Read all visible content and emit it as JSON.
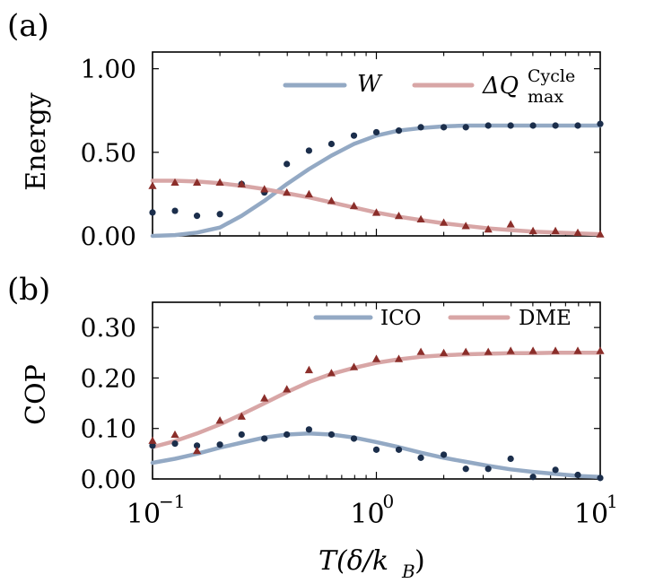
{
  "panels": [
    {
      "panel_label": "(a)",
      "ylabel": "Energy",
      "legend": [
        {
          "name": "W",
          "color": "#93a9c4",
          "style": "line"
        },
        {
          "name": "ΔQ",
          "sub": "max",
          "sup": "Cycle",
          "color": "#d8a6a6",
          "style": "line"
        }
      ]
    },
    {
      "panel_label": "(b)",
      "ylabel": "COP",
      "legend": [
        {
          "name": "ICO",
          "color": "#93a9c4",
          "style": "line"
        },
        {
          "name": "DME",
          "color": "#d8a6a6",
          "style": "line"
        }
      ]
    }
  ],
  "xlabel": {
    "main": "T(δ/k",
    "sub": "B",
    "close": ")"
  },
  "chart_data": [
    {
      "type": "line",
      "panel": "(a)",
      "ylabel": "Energy",
      "xscale": "log",
      "xlim": [
        0.1,
        10
      ],
      "ylim": [
        0,
        1.1
      ],
      "yticks": [
        "0.00",
        "0.50",
        "1.00"
      ],
      "ytick_values": [
        0,
        0.5,
        1.0
      ],
      "xtick_values": [
        0.1,
        1,
        10
      ],
      "series": [
        {
          "name": "W",
          "kind": "line",
          "color": "#93a9c4",
          "x": [
            0.1,
            0.126,
            0.158,
            0.2,
            0.25,
            0.316,
            0.398,
            0.5,
            0.63,
            0.794,
            1,
            1.26,
            1.58,
            2,
            2.51,
            3.16,
            3.98,
            5.01,
            6.31,
            7.94,
            10
          ],
          "y": [
            0.0,
            0.005,
            0.02,
            0.05,
            0.12,
            0.21,
            0.31,
            0.4,
            0.48,
            0.55,
            0.6,
            0.63,
            0.645,
            0.655,
            0.66,
            0.66,
            0.66,
            0.66,
            0.66,
            0.66,
            0.66
          ]
        },
        {
          "name": "ΔQ",
          "kind": "line",
          "color": "#d8a6a6",
          "x": [
            0.1,
            0.126,
            0.158,
            0.2,
            0.25,
            0.316,
            0.398,
            0.5,
            0.63,
            0.794,
            1,
            1.26,
            1.58,
            2,
            2.51,
            3.16,
            3.98,
            5.01,
            6.31,
            7.94,
            10
          ],
          "y": [
            0.33,
            0.33,
            0.325,
            0.315,
            0.3,
            0.28,
            0.255,
            0.23,
            0.2,
            0.17,
            0.14,
            0.115,
            0.095,
            0.075,
            0.06,
            0.045,
            0.035,
            0.025,
            0.02,
            0.015,
            0.01
          ]
        },
        {
          "name": "W-markers",
          "kind": "scatter",
          "marker": "circle",
          "color": "#1b2e4b",
          "x": [
            0.1,
            0.126,
            0.158,
            0.2,
            0.25,
            0.316,
            0.398,
            0.5,
            0.63,
            0.794,
            1,
            1.26,
            1.58,
            2,
            2.51,
            3.16,
            3.98,
            5.01,
            6.31,
            7.94,
            10
          ],
          "y": [
            0.14,
            0.15,
            0.12,
            0.13,
            0.31,
            0.26,
            0.43,
            0.51,
            0.55,
            0.6,
            0.62,
            0.63,
            0.65,
            0.65,
            0.65,
            0.66,
            0.66,
            0.66,
            0.66,
            0.66,
            0.67
          ]
        },
        {
          "name": "ΔQ-markers",
          "kind": "scatter",
          "marker": "triangle",
          "color": "#8b2e2a",
          "x": [
            0.1,
            0.126,
            0.158,
            0.2,
            0.25,
            0.316,
            0.398,
            0.5,
            0.63,
            0.794,
            1,
            1.26,
            1.58,
            2,
            2.51,
            3.16,
            3.98,
            5.01,
            6.31,
            7.94,
            10
          ],
          "y": [
            0.3,
            0.32,
            0.32,
            0.32,
            0.31,
            0.28,
            0.26,
            0.25,
            0.21,
            0.18,
            0.14,
            0.12,
            0.1,
            0.08,
            0.06,
            0.04,
            0.07,
            0.03,
            0.03,
            0.02,
            0.01
          ]
        }
      ]
    },
    {
      "type": "line",
      "panel": "(b)",
      "ylabel": "COP",
      "xscale": "log",
      "xlim": [
        0.1,
        10
      ],
      "ylim": [
        0,
        0.35
      ],
      "yticks": [
        "0.00",
        "0.10",
        "0.20",
        "0.30"
      ],
      "ytick_values": [
        0,
        0.1,
        0.2,
        0.3
      ],
      "xticks": [
        "10",
        "10",
        "10"
      ],
      "xtick_exponents": [
        "−1",
        "0",
        "1"
      ],
      "xtick_values": [
        0.1,
        1,
        10
      ],
      "series": [
        {
          "name": "ICO",
          "kind": "line",
          "color": "#93a9c4",
          "x": [
            0.1,
            0.126,
            0.158,
            0.2,
            0.25,
            0.316,
            0.398,
            0.5,
            0.63,
            0.794,
            1,
            1.26,
            1.58,
            2,
            2.51,
            3.16,
            3.98,
            5.01,
            6.31,
            7.94,
            10
          ],
          "y": [
            0.032,
            0.04,
            0.05,
            0.062,
            0.072,
            0.082,
            0.088,
            0.09,
            0.088,
            0.082,
            0.073,
            0.063,
            0.052,
            0.042,
            0.034,
            0.026,
            0.019,
            0.014,
            0.01,
            0.006,
            0.004
          ]
        },
        {
          "name": "DME",
          "kind": "line",
          "color": "#d8a6a6",
          "x": [
            0.1,
            0.126,
            0.158,
            0.2,
            0.25,
            0.316,
            0.398,
            0.5,
            0.63,
            0.794,
            1,
            1.26,
            1.58,
            2,
            2.51,
            3.16,
            3.98,
            5.01,
            6.31,
            7.94,
            10
          ],
          "y": [
            0.063,
            0.075,
            0.09,
            0.108,
            0.128,
            0.15,
            0.172,
            0.192,
            0.208,
            0.22,
            0.23,
            0.237,
            0.242,
            0.245,
            0.247,
            0.248,
            0.249,
            0.249,
            0.25,
            0.25,
            0.25
          ]
        },
        {
          "name": "ICO-markers",
          "kind": "scatter",
          "marker": "circle",
          "color": "#1b2e4b",
          "x": [
            0.1,
            0.126,
            0.158,
            0.2,
            0.25,
            0.316,
            0.398,
            0.5,
            0.63,
            0.794,
            1,
            1.26,
            1.58,
            2,
            2.51,
            3.16,
            3.98,
            5.01,
            6.31,
            7.94,
            10
          ],
          "y": [
            0.066,
            0.07,
            0.066,
            0.068,
            0.088,
            0.08,
            0.088,
            0.098,
            0.088,
            0.08,
            0.058,
            0.058,
            0.042,
            0.048,
            0.02,
            0.02,
            0.04,
            0.004,
            0.018,
            0.008,
            0.002
          ]
        },
        {
          "name": "DME-markers",
          "kind": "scatter",
          "marker": "triangle",
          "color": "#8b2e2a",
          "x": [
            0.1,
            0.126,
            0.158,
            0.2,
            0.25,
            0.316,
            0.398,
            0.5,
            0.63,
            0.794,
            1,
            1.26,
            1.58,
            2,
            2.51,
            3.16,
            3.98,
            5.01,
            6.31,
            7.94,
            10
          ],
          "y": [
            0.076,
            0.088,
            0.056,
            0.116,
            0.124,
            0.16,
            0.178,
            0.216,
            0.21,
            0.222,
            0.238,
            0.238,
            0.252,
            0.25,
            0.252,
            0.252,
            0.254,
            0.254,
            0.254,
            0.254,
            0.254
          ]
        }
      ]
    }
  ]
}
